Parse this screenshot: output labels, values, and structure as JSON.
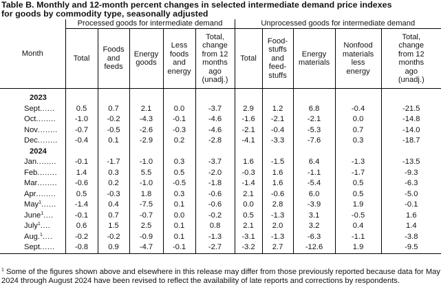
{
  "title_line1": "Table B. Monthly and 12-month percent changes in selected intermediate demand price indexes",
  "title_line2": "for goods by commodity type, seasonally adjusted",
  "groups": {
    "processed": "Processed goods for intermediate demand",
    "unprocessed": "Unprocessed goods for intermediate demand"
  },
  "headers": {
    "month": "Month",
    "p_total": "Total",
    "p_foods": [
      "Foods",
      "and",
      "feeds"
    ],
    "p_energy": [
      "Energy",
      "goods"
    ],
    "p_less": [
      "Less",
      "foods",
      "and",
      "energy"
    ],
    "p_change": [
      "Total,",
      "change",
      "from 12",
      "months",
      "ago",
      "(unadj.)"
    ],
    "u_total": "Total",
    "u_food": [
      "Food-",
      "stuffs",
      "and",
      "feed-",
      "stuffs"
    ],
    "u_energy": [
      "Energy",
      "materials"
    ],
    "u_nonfood": [
      "Nonfood",
      "materials",
      "less",
      "energy"
    ],
    "u_change": [
      "Total,",
      "change",
      "from 12",
      "months",
      "ago",
      "(unadj.)"
    ]
  },
  "year_2023": "2023",
  "year_2024": "2024",
  "rows_2023": [
    {
      "month": "Sept",
      "sup": "",
      "dots": "......",
      "values": [
        "0.5",
        "0.7",
        "2.1",
        "0.0",
        "-3.7",
        "2.9",
        "1.2",
        "6.8",
        "-0.4",
        "-21.5"
      ]
    },
    {
      "month": "Oct",
      "sup": "",
      "dots": "........",
      "values": [
        "-1.0",
        "-0.2",
        "-4.3",
        "-0.1",
        "-4.6",
        "-1.6",
        "-2.1",
        "-2.1",
        "0.0",
        "-14.8"
      ]
    },
    {
      "month": "Nov",
      "sup": "",
      "dots": "........",
      "values": [
        "-0.7",
        "-0.5",
        "-2.6",
        "-0.3",
        "-4.6",
        "-2.1",
        "-0.4",
        "-5.3",
        "0.7",
        "-14.0"
      ]
    },
    {
      "month": "Dec",
      "sup": "",
      "dots": "........",
      "values": [
        "-0.4",
        "0.1",
        "-2.9",
        "0.2",
        "-2.8",
        "-4.1",
        "-3.3",
        "-7.6",
        "0.3",
        "-18.7"
      ]
    }
  ],
  "rows_2024": [
    {
      "month": "Jan",
      "sup": "",
      "dots": "........",
      "values": [
        "-0.1",
        "-1.7",
        "-1.0",
        "0.3",
        "-3.7",
        "1.6",
        "-1.5",
        "6.4",
        "-1.3",
        "-13.5"
      ]
    },
    {
      "month": "Feb",
      "sup": "",
      "dots": "........",
      "values": [
        "1.4",
        "0.3",
        "5.5",
        "0.5",
        "-2.0",
        "-0.3",
        "1.6",
        "-1.1",
        "-1.7",
        "-9.3"
      ]
    },
    {
      "month": "Mar",
      "sup": "",
      "dots": "........",
      "values": [
        "-0.6",
        "0.2",
        "-1.0",
        "-0.5",
        "-1.8",
        "-1.4",
        "1.6",
        "-5.4",
        "0.5",
        "-6.3"
      ]
    },
    {
      "month": "Apr",
      "sup": "",
      "dots": "........",
      "values": [
        "0.5",
        "-0.3",
        "1.8",
        "0.3",
        "-0.6",
        "2.1",
        "-0.6",
        "6.0",
        "0.5",
        "-5.0"
      ]
    },
    {
      "month": "May",
      "sup": "1",
      "dots": "......",
      "values": [
        "-1.4",
        "0.4",
        "-7.5",
        "0.1",
        "-0.6",
        "0.0",
        "2.8",
        "-3.9",
        "1.9",
        "-0.1"
      ]
    },
    {
      "month": "June",
      "sup": "1",
      "dots": "....",
      "values": [
        "-0.1",
        "0.7",
        "-0.7",
        "0.0",
        "-0.2",
        "0.5",
        "-1.3",
        "3.1",
        "-0.5",
        "1.6"
      ]
    },
    {
      "month": "July",
      "sup": "1",
      "dots": "....",
      "values": [
        "0.6",
        "1.5",
        "2.5",
        "0.1",
        "0.8",
        "2.1",
        "2.0",
        "3.2",
        "0.4",
        "1.4"
      ]
    },
    {
      "month": "Aug.",
      "sup": "1",
      "dots": "....",
      "values": [
        "-0.2",
        "-0.2",
        "-0.9",
        "0.1",
        "-1.3",
        "-3.1",
        "-1.3",
        "-6.3",
        "-1.1",
        "-3.8"
      ]
    },
    {
      "month": "Sept",
      "sup": "",
      "dots": "......",
      "values": [
        "-0.8",
        "0.9",
        "-4.7",
        "-0.1",
        "-2.7",
        "-3.2",
        "2.7",
        "-12.6",
        "1.9",
        "-9.5"
      ]
    }
  ],
  "footnote": {
    "mark": "1",
    "text": " Some of the figures shown above and elsewhere in this release may differ from those previously reported because data for May 2024 through August 2024 have been revised to reflect the availability of late reports and corrections by respondents."
  }
}
